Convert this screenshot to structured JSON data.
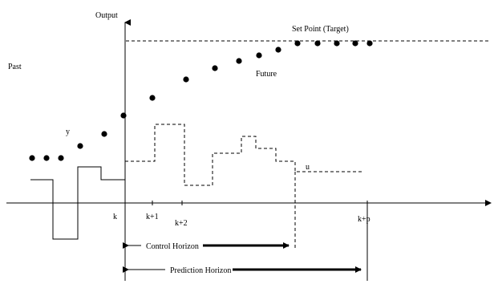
{
  "labels": {
    "output": "Output",
    "past": "Past",
    "set_point": "Set Point (Target)",
    "future": "Future",
    "y": "y",
    "u": "u",
    "k": "k",
    "k_plus_1": "k+1",
    "k_plus_2": "k+2",
    "k_plus_p": "k+p",
    "control_horizon": "Control Horizon",
    "prediction_horizon": "Prediction Horizon"
  }
}
